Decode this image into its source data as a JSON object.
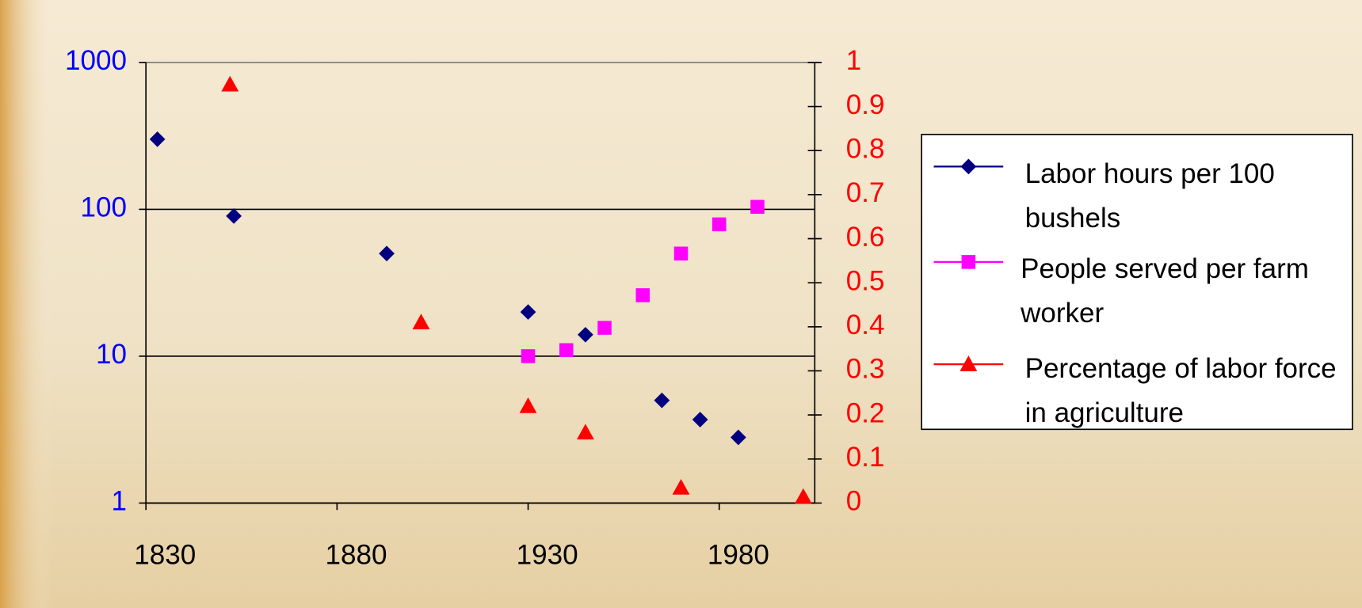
{
  "chart_data": {
    "type": "scatter",
    "xlim": [
      1830,
      2005
    ],
    "xticks": [
      1830,
      1880,
      1930,
      1980
    ],
    "ylim": [
      1,
      1000
    ],
    "yticks": [
      1,
      10,
      100,
      1000
    ],
    "y_scale": "log",
    "y2lim": [
      0,
      1
    ],
    "y2ticks": [
      0,
      0.1,
      0.2,
      0.3,
      0.4,
      0.5,
      0.6,
      0.7,
      0.8,
      0.9,
      1
    ],
    "grid": true,
    "ytick_color": "#0000ff",
    "y2tick_color": "#ff0000",
    "series": [
      {
        "name": "Labor hours per 100 bushels",
        "color": "#000080",
        "marker": "diamond",
        "x": [
          1833,
          1853,
          1893,
          1930,
          1945,
          1965,
          1975,
          1985
        ],
        "values": [
          300,
          90,
          50,
          20,
          14,
          5,
          3.7,
          2.8
        ]
      },
      {
        "name": "People served per farm worker",
        "color": "#ff00ff",
        "marker": "square",
        "x": [
          1930,
          1940,
          1950,
          1960,
          1970,
          1980,
          1990
        ],
        "values": [
          10,
          11,
          15.6,
          26,
          50,
          79,
          104
        ]
      },
      {
        "name": "Percentage of labor force in agriculture",
        "color": "#ff0000",
        "marker": "triangle",
        "axis": "y2",
        "x": [
          1852,
          1902,
          1930,
          1945,
          1970,
          2002
        ],
        "values": [
          0.95,
          0.41,
          0.22,
          0.16,
          0.035,
          0.014
        ]
      }
    ]
  }
}
